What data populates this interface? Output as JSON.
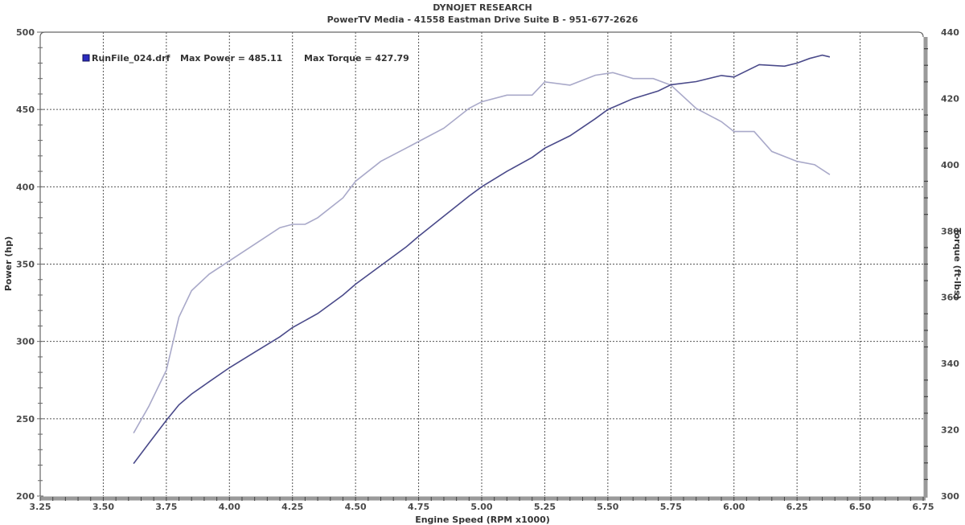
{
  "header": {
    "title": "DYNOJET RESEARCH",
    "subtitle": "PowerTV Media - 41558 Eastman Drive Suite B - 951-677-2626"
  },
  "legend": {
    "marker_color": "#2b2bbf",
    "run_file": "RunFile_024.drf",
    "max_power_label": "Max Power = 485.11",
    "max_torque_label": "Max Torque = 427.79"
  },
  "axes": {
    "x_title": "Engine Speed (RPM x1000)",
    "y_left_title": "Power (hp)",
    "y_right_title": "Torque (ft-lbs)",
    "x_ticks": [
      "3.25",
      "3.50",
      "3.75",
      "4.00",
      "4.25",
      "4.50",
      "4.75",
      "5.00",
      "5.25",
      "5.50",
      "5.75",
      "6.00",
      "6.25",
      "6.50",
      "6.75"
    ],
    "y_left_ticks": [
      "500",
      "450",
      "400",
      "350",
      "300",
      "250",
      "200"
    ],
    "y_right_ticks": [
      "440",
      "420",
      "400",
      "380",
      "360",
      "340",
      "320",
      "300"
    ]
  },
  "colors": {
    "power_line": "#4a4a8a",
    "torque_line": "#a9a9c9",
    "grid": "#555555",
    "frame": "#888888"
  },
  "chart_data": {
    "type": "line",
    "title": "DYNOJET RESEARCH",
    "subtitle": "PowerTV Media - 41558 Eastman Drive Suite B - 951-677-2626",
    "xlabel": "Engine Speed (RPM x1000)",
    "ylabel": "Power (hp)",
    "y2label": "Torque (ft-lbs)",
    "xlim": [
      3.25,
      6.75
    ],
    "ylim": [
      200,
      500
    ],
    "y2lim": [
      300,
      440
    ],
    "grid": true,
    "legend": [
      "RunFile_024.drf Max Power = 485.11",
      "Max Torque = 427.79"
    ],
    "legend_position": "top-left",
    "series": [
      {
        "name": "Power (hp)",
        "axis": "left",
        "x": [
          3.62,
          3.68,
          3.75,
          3.8,
          3.85,
          3.92,
          4.0,
          4.1,
          4.2,
          4.25,
          4.35,
          4.45,
          4.5,
          4.6,
          4.7,
          4.75,
          4.85,
          4.95,
          5.0,
          5.1,
          5.2,
          5.25,
          5.35,
          5.45,
          5.5,
          5.6,
          5.7,
          5.75,
          5.85,
          5.95,
          6.0,
          6.1,
          6.2,
          6.25,
          6.3,
          6.35,
          6.38
        ],
        "values": [
          221,
          234,
          249,
          259,
          266,
          274,
          283,
          293,
          303,
          309,
          318,
          330,
          337,
          349,
          361,
          368,
          381,
          394,
          400,
          410,
          419,
          425,
          433,
          444,
          450,
          457,
          462,
          466,
          468,
          472,
          471,
          479,
          478,
          480,
          483,
          485.11,
          484
        ]
      },
      {
        "name": "Torque (ft-lbs)",
        "axis": "right",
        "x": [
          3.62,
          3.68,
          3.75,
          3.8,
          3.85,
          3.92,
          4.0,
          4.1,
          4.2,
          4.25,
          4.3,
          4.35,
          4.45,
          4.5,
          4.6,
          4.7,
          4.75,
          4.85,
          4.95,
          5.0,
          5.1,
          5.2,
          5.25,
          5.35,
          5.45,
          5.52,
          5.6,
          5.68,
          5.75,
          5.85,
          5.95,
          6.0,
          6.08,
          6.15,
          6.25,
          6.32,
          6.38
        ],
        "values": [
          319,
          327,
          338,
          354,
          362,
          367,
          371,
          376,
          381,
          382,
          382,
          384,
          390,
          395,
          401,
          405,
          407,
          411,
          417,
          419,
          421,
          421,
          425,
          424,
          427,
          427.79,
          426,
          426,
          424,
          417,
          413,
          410,
          410,
          404,
          401,
          400,
          397
        ]
      }
    ]
  }
}
